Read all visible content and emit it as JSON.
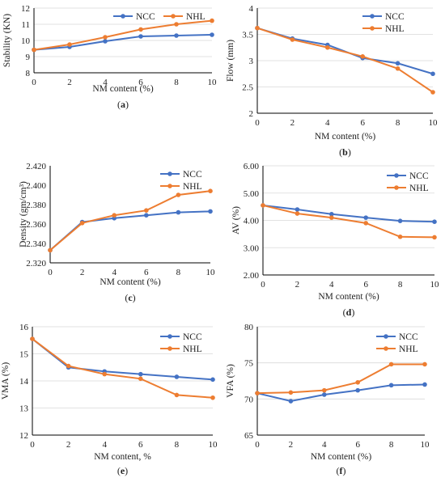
{
  "colors": {
    "ncc": "#4472C4",
    "nhl": "#ED7D31"
  },
  "chart_data": [
    {
      "id": "a",
      "type": "line",
      "caption": "a",
      "xlabel": "NM content (%)",
      "ylabel": "Stability (KN)",
      "x": [
        0,
        2,
        4,
        6,
        8,
        10
      ],
      "xlim": [
        0,
        10
      ],
      "ylim": [
        8,
        12
      ],
      "yticks": [
        "8",
        "9",
        "10",
        "11",
        "12"
      ],
      "ytick_values": [
        8,
        9,
        10,
        11,
        12
      ],
      "grid": true,
      "legend": "top",
      "series": [
        {
          "name": "NCC",
          "values": [
            9.42,
            9.6,
            9.95,
            10.25,
            10.3,
            10.35
          ]
        },
        {
          "name": "NHL",
          "values": [
            9.42,
            9.75,
            10.2,
            10.68,
            11.0,
            11.22
          ]
        }
      ]
    },
    {
      "id": "b",
      "type": "line",
      "caption": "b",
      "xlabel": "NM content (%)",
      "ylabel": "Flow (mm)",
      "x": [
        0,
        2,
        4,
        6,
        8,
        10
      ],
      "xlim": [
        0,
        10
      ],
      "ylim": [
        2,
        4
      ],
      "yticks": [
        "2",
        "2.5",
        "3",
        "3.5",
        "4"
      ],
      "ytick_values": [
        2,
        2.5,
        3,
        3.5,
        4
      ],
      "grid": true,
      "legend": "top-right",
      "series": [
        {
          "name": "NCC",
          "values": [
            3.62,
            3.42,
            3.3,
            3.05,
            2.95,
            2.75
          ]
        },
        {
          "name": "NHL",
          "values": [
            3.62,
            3.4,
            3.25,
            3.08,
            2.85,
            2.4
          ]
        }
      ]
    },
    {
      "id": "c",
      "type": "line",
      "caption": "c",
      "xlabel": "NM content (%)",
      "ylabel": "Density (gm/cm³)",
      "x": [
        0,
        2,
        4,
        6,
        8,
        10
      ],
      "xlim": [
        0,
        10
      ],
      "ylim": [
        2.32,
        2.42
      ],
      "yticks": [
        "2.320",
        "2.340",
        "2.360",
        "2.380",
        "2.400",
        "2.420"
      ],
      "ytick_values": [
        2.32,
        2.34,
        2.36,
        2.38,
        2.4,
        2.42
      ],
      "grid": false,
      "legend": "top-right",
      "series": [
        {
          "name": "NCC",
          "values": [
            2.333,
            2.362,
            2.366,
            2.369,
            2.372,
            2.373
          ]
        },
        {
          "name": "NHL",
          "values": [
            2.333,
            2.361,
            2.369,
            2.374,
            2.39,
            2.394
          ]
        }
      ]
    },
    {
      "id": "d",
      "type": "line",
      "caption": "d",
      "xlabel": "NM content (%)",
      "ylabel": "AV (%)",
      "x": [
        0,
        2,
        4,
        6,
        8,
        10
      ],
      "xlim": [
        0,
        10
      ],
      "ylim": [
        2,
        6
      ],
      "yticks": [
        "2.00",
        "3.00",
        "4.00",
        "5.00",
        "6.00"
      ],
      "ytick_values": [
        2,
        3,
        4,
        5,
        6
      ],
      "grid": true,
      "legend": "top-right",
      "series": [
        {
          "name": "NCC",
          "values": [
            4.55,
            4.4,
            4.23,
            4.1,
            3.98,
            3.95
          ]
        },
        {
          "name": "NHL",
          "values": [
            4.55,
            4.25,
            4.1,
            3.9,
            3.4,
            3.38
          ]
        }
      ]
    },
    {
      "id": "e",
      "type": "line",
      "caption": "e",
      "xlabel": "NM content, %",
      "ylabel": "VMA (%)",
      "x": [
        0,
        2,
        4,
        6,
        8,
        10
      ],
      "xlim": [
        0,
        10
      ],
      "ylim": [
        12,
        16
      ],
      "yticks": [
        "12",
        "13",
        "14",
        "15",
        "16"
      ],
      "ytick_values": [
        12,
        13,
        14,
        15,
        16
      ],
      "grid": true,
      "legend": "top-right",
      "series": [
        {
          "name": "NCC",
          "values": [
            15.55,
            14.5,
            14.35,
            14.25,
            14.15,
            14.05
          ]
        },
        {
          "name": "NHL",
          "values": [
            15.55,
            14.55,
            14.25,
            14.08,
            13.48,
            13.38
          ]
        }
      ]
    },
    {
      "id": "f",
      "type": "line",
      "caption": "f",
      "xlabel": "NM content (%)",
      "ylabel": "VFA (%)",
      "x": [
        0,
        2,
        4,
        6,
        8,
        10
      ],
      "xlim": [
        0,
        10
      ],
      "ylim": [
        65,
        80
      ],
      "yticks": [
        "65",
        "70",
        "75",
        "80"
      ],
      "ytick_values": [
        65,
        70,
        75,
        80
      ],
      "grid": true,
      "legend": "top-right",
      "series": [
        {
          "name": "NCC",
          "values": [
            70.8,
            69.7,
            70.6,
            71.2,
            71.9,
            72.0
          ]
        },
        {
          "name": "NHL",
          "values": [
            70.8,
            70.9,
            71.2,
            72.3,
            74.8,
            74.8
          ]
        }
      ]
    }
  ]
}
